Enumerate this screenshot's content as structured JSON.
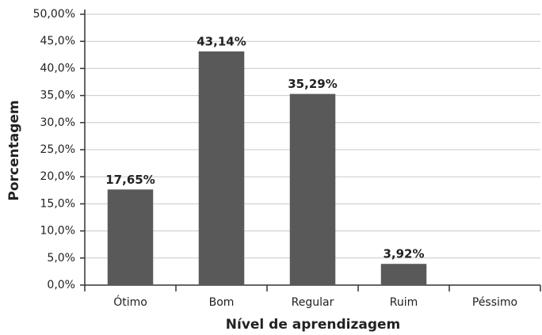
{
  "chart_data": {
    "type": "bar",
    "xlabel": "Nível de aprendizagem",
    "ylabel": "Porcentagem",
    "categories": [
      "Ótimo",
      "Bom",
      "Regular",
      "Ruim",
      "Péssimo"
    ],
    "values": [
      17.65,
      43.14,
      35.29,
      3.92,
      0
    ],
    "value_labels": [
      "17,65%",
      "43,14%",
      "35,29%",
      "3,92%",
      null
    ],
    "color": "#595959",
    "ylim": [
      0,
      50
    ],
    "yticks": [
      {
        "value": 0,
        "label": "0,0%"
      },
      {
        "value": 5,
        "label": "5,0%"
      },
      {
        "value": 10,
        "label": "10,0%"
      },
      {
        "value": 15,
        "label": "15,0%"
      },
      {
        "value": 20,
        "label": "20,0%"
      },
      {
        "value": 25,
        "label": "25,0%"
      },
      {
        "value": 30,
        "label": "30,0%"
      },
      {
        "value": 35,
        "label": "35,0%"
      },
      {
        "value": 40,
        "label": "40,0%"
      },
      {
        "value": 45,
        "label": "45,0%"
      },
      {
        "value": 50,
        "label": "50,00%"
      }
    ],
    "grid": true
  }
}
